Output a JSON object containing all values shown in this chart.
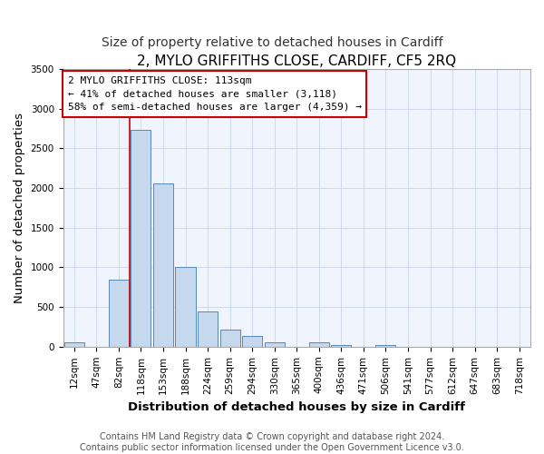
{
  "title": "2, MYLO GRIFFITHS CLOSE, CARDIFF, CF5 2RQ",
  "subtitle": "Size of property relative to detached houses in Cardiff",
  "xlabel": "Distribution of detached houses by size in Cardiff",
  "ylabel": "Number of detached properties",
  "footnote": "Contains HM Land Registry data © Crown copyright and database right 2024.\nContains public sector information licensed under the Open Government Licence v3.0.",
  "bar_labels": [
    "12sqm",
    "47sqm",
    "82sqm",
    "118sqm",
    "153sqm",
    "188sqm",
    "224sqm",
    "259sqm",
    "294sqm",
    "330sqm",
    "365sqm",
    "400sqm",
    "436sqm",
    "471sqm",
    "506sqm",
    "541sqm",
    "577sqm",
    "612sqm",
    "647sqm",
    "683sqm",
    "718sqm"
  ],
  "bar_values": [
    50,
    0,
    850,
    2730,
    2060,
    1010,
    450,
    210,
    140,
    50,
    0,
    50,
    20,
    0,
    20,
    0,
    0,
    0,
    0,
    0,
    0
  ],
  "bar_color": "#c5d8ee",
  "bar_edge_color": "#5588bb",
  "property_line_x": 2.5,
  "property_line_label": "2 MYLO GRIFFITHS CLOSE: 113sqm",
  "annotation_line1": "← 41% of detached houses are smaller (3,118)",
  "annotation_line2": "58% of semi-detached houses are larger (4,359) →",
  "annotation_box_color": "#cc0000",
  "ylim": [
    0,
    3500
  ],
  "bg_color": "#ffffff",
  "plot_bg_color": "#f0f4fc",
  "grid_color": "#c8d4e8",
  "title_fontsize": 11,
  "subtitle_fontsize": 10,
  "axis_label_fontsize": 9.5,
  "tick_fontsize": 7.5,
  "footnote_fontsize": 7.0
}
